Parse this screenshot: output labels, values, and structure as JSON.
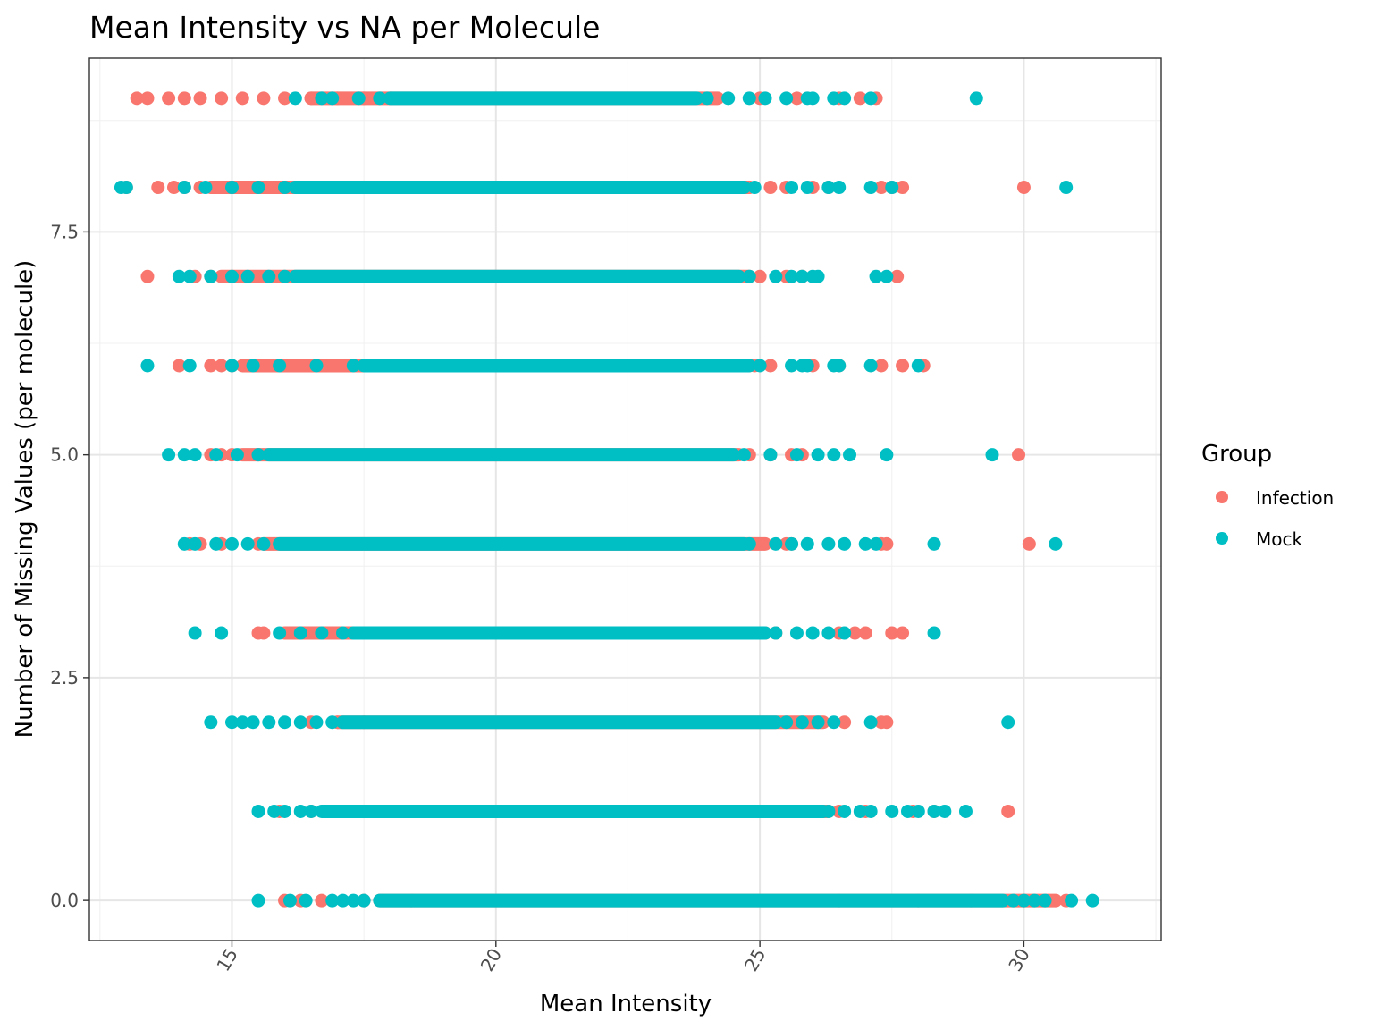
{
  "chart_data": {
    "type": "scatter",
    "title": "Mean Intensity vs NA per Molecule",
    "xlabel": "Mean Intensity",
    "ylabel": "Number of Missing Values (per molecule)",
    "xlim": [
      12.3,
      32.6
    ],
    "ylim": [
      -0.45,
      9.45
    ],
    "x_ticks": [
      15,
      20,
      25,
      30
    ],
    "x_tick_labels": [
      "15",
      "20",
      "25",
      "30"
    ],
    "y_ticks": [
      0,
      2.5,
      5,
      7.5
    ],
    "y_tick_labels": [
      "0.0",
      "2.5",
      "5.0",
      "7.5"
    ],
    "grid": true,
    "legend": {
      "title": "Group",
      "position": "right"
    },
    "series": [
      {
        "name": "Infection",
        "color": "#F8766D",
        "rows": [
          {
            "y": 0,
            "x": [
              16.0,
              16.3,
              16.7,
              17.5,
              18.4,
              26.5,
              28.0,
              29.0,
              30.0,
              30.8
            ]
          },
          {
            "y": 1,
            "x": [
              15.9,
              16.5,
              17.0,
              17.3,
              26.0,
              26.5,
              27.0,
              27.9,
              28.3,
              29.7
            ]
          },
          {
            "y": 2,
            "x": [
              16.5,
              17.0,
              17.5,
              26.6,
              27.3,
              27.4
            ]
          },
          {
            "y": 3,
            "x": [
              15.5,
              15.6,
              16.3,
              17.5,
              25.3,
              26.5,
              26.8,
              27.0,
              27.5,
              27.7
            ]
          },
          {
            "y": 4,
            "x": [
              14.2,
              14.4,
              14.8,
              15.5,
              25.5,
              25.6,
              27.3,
              27.4,
              30.1
            ]
          },
          {
            "y": 5,
            "x": [
              14.6,
              14.8,
              15.0,
              15.5,
              24.8,
              25.2,
              25.6,
              25.8,
              29.9
            ]
          },
          {
            "y": 6,
            "x": [
              14.0,
              14.6,
              14.8,
              15.0,
              24.9,
              25.2,
              26.0,
              26.5,
              27.3,
              27.7,
              28.1
            ]
          },
          {
            "y": 7,
            "x": [
              13.4,
              14.3,
              14.6,
              25.0,
              25.5,
              25.8,
              27.6
            ]
          },
          {
            "y": 8,
            "x": [
              13.0,
              13.6,
              13.9,
              14.1,
              14.4,
              24.8,
              25.2,
              25.5,
              26.0,
              26.3,
              27.3,
              27.5,
              27.7,
              30.0
            ]
          },
          {
            "y": 9,
            "x": [
              13.2,
              13.4,
              13.8,
              14.1,
              14.4,
              14.8,
              15.2,
              15.6,
              16.0,
              16.5,
              17.0,
              17.5,
              18.0,
              25.0,
              25.7,
              26.5,
              26.9,
              27.2
            ]
          }
        ],
        "bands": [
          {
            "y": 0,
            "from": 17.8,
            "to": 30.6
          },
          {
            "y": 1,
            "from": 17.2,
            "to": 26.3
          },
          {
            "y": 2,
            "from": 17.0,
            "to": 26.2
          },
          {
            "y": 3,
            "from": 16.0,
            "to": 25.1
          },
          {
            "y": 4,
            "from": 15.6,
            "to": 25.1
          },
          {
            "y": 5,
            "from": 15.2,
            "to": 24.6
          },
          {
            "y": 6,
            "from": 15.2,
            "to": 24.8
          },
          {
            "y": 7,
            "from": 14.8,
            "to": 24.8
          },
          {
            "y": 8,
            "from": 14.6,
            "to": 24.8
          },
          {
            "y": 9,
            "from": 16.5,
            "to": 24.2
          }
        ]
      },
      {
        "name": "Mock",
        "color": "#00BFC4",
        "rows": [
          {
            "y": 0,
            "x": [
              15.5,
              16.1,
              16.4,
              16.9,
              17.1,
              17.3,
              17.5,
              29.8,
              30.0,
              30.2,
              30.4,
              30.9,
              31.3
            ]
          },
          {
            "y": 1,
            "x": [
              15.5,
              15.8,
              16.0,
              16.3,
              16.5,
              26.3,
              26.6,
              26.9,
              27.1,
              27.5,
              27.8,
              28.0,
              28.3,
              28.5,
              28.9
            ]
          },
          {
            "y": 2,
            "x": [
              14.6,
              15.0,
              15.2,
              15.4,
              15.7,
              16.0,
              16.3,
              16.6,
              16.9,
              25.5,
              25.8,
              26.1,
              26.4,
              27.1,
              29.7
            ]
          },
          {
            "y": 3,
            "x": [
              14.3,
              14.8,
              15.9,
              16.3,
              16.7,
              17.1,
              25.3,
              25.7,
              26.0,
              26.3,
              26.6,
              28.3
            ]
          },
          {
            "y": 4,
            "x": [
              14.1,
              14.3,
              14.7,
              15.0,
              15.3,
              15.6,
              24.8,
              25.3,
              25.6,
              25.9,
              26.3,
              26.6,
              27.0,
              27.2,
              28.3,
              30.6
            ]
          },
          {
            "y": 5,
            "x": [
              13.8,
              14.1,
              14.3,
              14.7,
              15.1,
              15.5,
              24.7,
              25.2,
              25.7,
              26.1,
              26.4,
              26.7,
              27.4,
              29.4
            ]
          },
          {
            "y": 6,
            "x": [
              13.4,
              14.2,
              15.0,
              15.4,
              15.9,
              16.6,
              17.3,
              25.0,
              25.6,
              25.8,
              25.9,
              26.4,
              26.5,
              27.1,
              28.0
            ]
          },
          {
            "y": 7,
            "x": [
              14.0,
              14.2,
              14.6,
              15.0,
              15.3,
              15.7,
              16.0,
              24.8,
              25.3,
              25.6,
              25.8,
              26.0,
              26.1,
              27.2,
              27.4
            ]
          },
          {
            "y": 8,
            "x": [
              12.9,
              13.0,
              14.1,
              14.5,
              15.0,
              15.5,
              16.0,
              24.9,
              25.6,
              25.9,
              26.3,
              26.5,
              27.1,
              27.5,
              30.8
            ]
          },
          {
            "y": 9,
            "x": [
              16.2,
              16.7,
              16.9,
              17.4,
              17.8,
              24.0,
              24.4,
              24.8,
              25.1,
              25.5,
              25.9,
              26.0,
              26.4,
              26.6,
              27.1,
              29.1
            ]
          }
        ],
        "bands": [
          {
            "y": 0,
            "from": 17.8,
            "to": 29.6
          },
          {
            "y": 1,
            "from": 16.7,
            "to": 26.2
          },
          {
            "y": 2,
            "from": 17.1,
            "to": 25.3
          },
          {
            "y": 3,
            "from": 17.3,
            "to": 25.1
          },
          {
            "y": 4,
            "from": 15.9,
            "to": 24.7
          },
          {
            "y": 5,
            "from": 15.7,
            "to": 24.5
          },
          {
            "y": 6,
            "from": 17.5,
            "to": 24.8
          },
          {
            "y": 7,
            "from": 16.2,
            "to": 24.6
          },
          {
            "y": 8,
            "from": 16.2,
            "to": 24.7
          },
          {
            "y": 9,
            "from": 18.0,
            "to": 23.8
          }
        ]
      }
    ]
  }
}
